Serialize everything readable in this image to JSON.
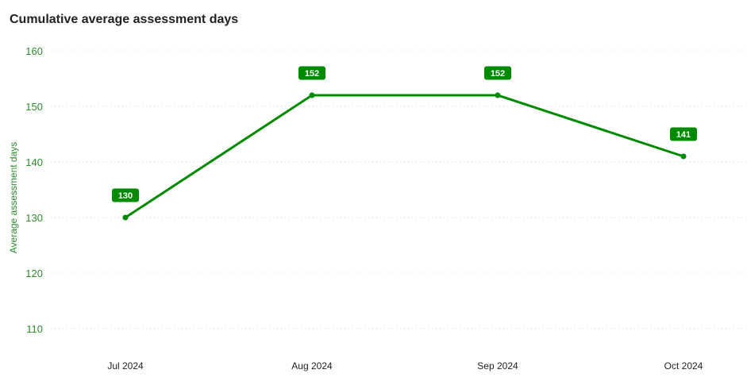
{
  "chart_data": {
    "type": "line",
    "title": "Cumulative average assessment days",
    "xlabel": "",
    "ylabel": "Average assessment days",
    "categories": [
      "Jul 2024",
      "Aug 2024",
      "Sep 2024",
      "Oct 2024"
    ],
    "series": [
      {
        "values": [
          130,
          152,
          152,
          141
        ]
      }
    ],
    "ylim": [
      108,
      160
    ],
    "yticks": [
      110,
      120,
      130,
      140,
      150,
      160
    ],
    "grid": true,
    "data_labels": true,
    "color": "#008a00",
    "tick_color": "#2e8b2e"
  }
}
